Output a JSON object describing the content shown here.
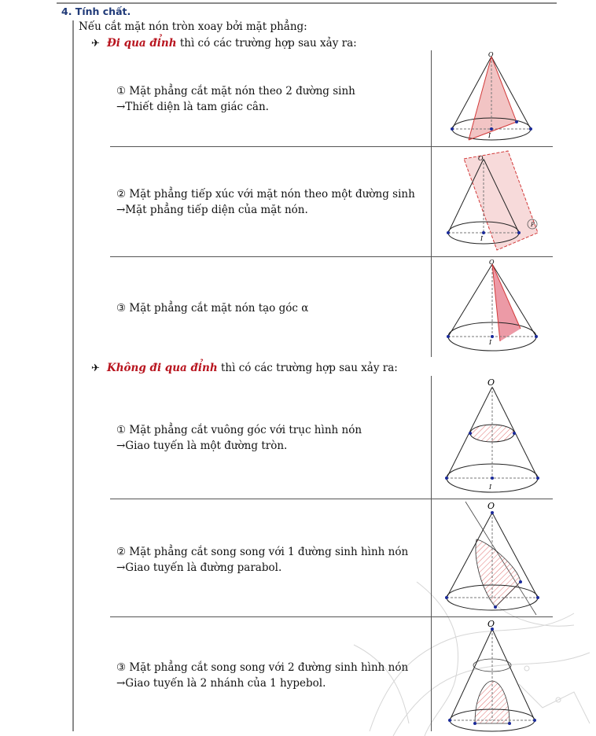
{
  "section": {
    "heading": "4. Tính chất."
  },
  "intro": "Nếu cắt mặt nón tròn xoay bởi mặt phẳng:",
  "cases": [
    {
      "arrow": "✈",
      "emphasis": "Đi qua đỉnh",
      "rest": " thì có các trường hợp sau xảy ra:",
      "items": [
        {
          "line1": "① Mặt phẳng cắt mặt nón theo 2 đường sinh",
          "line2": "→Thiết diện là tam giác cân."
        },
        {
          "line1": "② Mặt phẳng tiếp xúc với mặt nón theo một đường sinh",
          "line2": "→Mặt phẳng tiếp diện của mặt nón."
        },
        {
          "line1": "③ Mặt phẳng cắt mặt nón tạo góc α",
          "line2": ""
        }
      ]
    },
    {
      "arrow": "✈",
      "emphasis": "Không đi qua đỉnh",
      "rest": " thì có các trường hợp sau xảy ra:",
      "items": [
        {
          "line1": "① Mặt phẳng cắt vuông góc với trục hình nón",
          "line2": "→Giao tuyến là một đường tròn."
        },
        {
          "line1": "② Mặt phẳng cắt song song với 1 đường sinh hình nón",
          "line2": "→Giao tuyến là đường parabol."
        },
        {
          "line1": "③ Mặt phẳng cắt song song với 2 đường sinh hình nón",
          "line2": "→Giao tuyến là 2 nhánh của 1 hypebol."
        }
      ]
    }
  ],
  "figure_labels": {
    "apex": "O",
    "center": "I",
    "plane": "P"
  },
  "colors": {
    "heading": "#203a78",
    "emphasis": "#b8141e",
    "plane_fill": "#f2c4c4",
    "plane_stroke": "#d23a3a",
    "point": "#1a2a9a"
  }
}
